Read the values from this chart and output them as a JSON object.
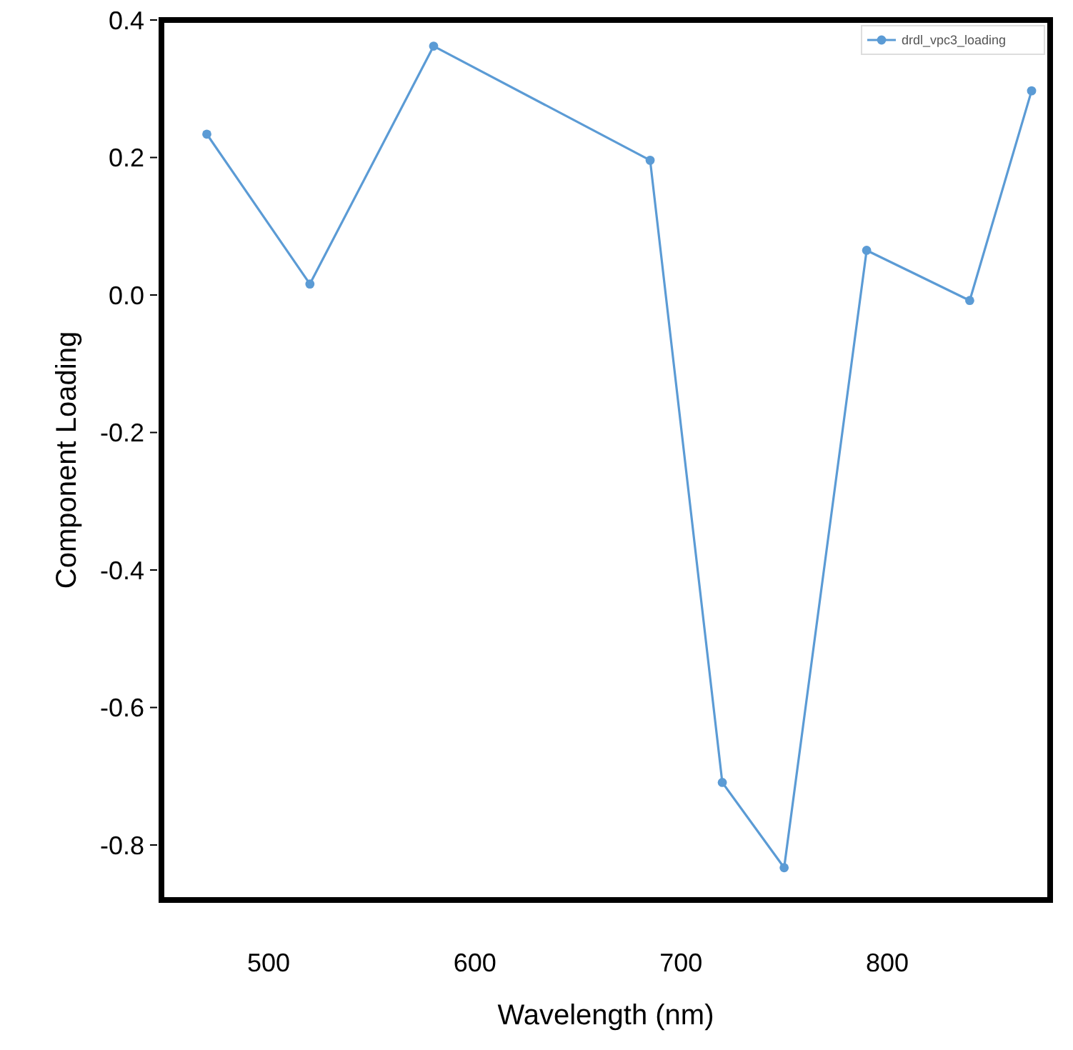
{
  "chart_data": {
    "type": "line",
    "xlabel": "Wavelength (nm)",
    "ylabel": "Component Loading",
    "x": [
      470,
      520,
      580,
      685,
      720,
      750,
      790,
      840,
      870
    ],
    "series": [
      {
        "name": "drdl_vpc3_loading",
        "color": "#5b9bd5",
        "values": [
          0.234,
          0.016,
          0.362,
          0.196,
          -0.709,
          -0.833,
          0.065,
          -0.008,
          0.297
        ]
      }
    ],
    "xlim": [
      448,
      879
    ],
    "xticks": [
      500,
      600,
      700,
      800
    ],
    "ylim": [
      -0.88,
      0.4
    ],
    "yticks": [
      {
        "value": 0.4,
        "label": "0.4"
      },
      {
        "value": 0.2,
        "label": "0.2"
      },
      {
        "value": 0,
        "label": "0.0"
      },
      {
        "value": -0.2,
        "label": "-0.2"
      },
      {
        "value": -0.4,
        "label": "-0.4"
      },
      {
        "value": -0.6,
        "label": "-0.6"
      },
      {
        "value": -0.8,
        "label": "-0.8"
      }
    ],
    "grid": false,
    "legend": "top right",
    "marker": "circle",
    "line_style": "solid"
  }
}
